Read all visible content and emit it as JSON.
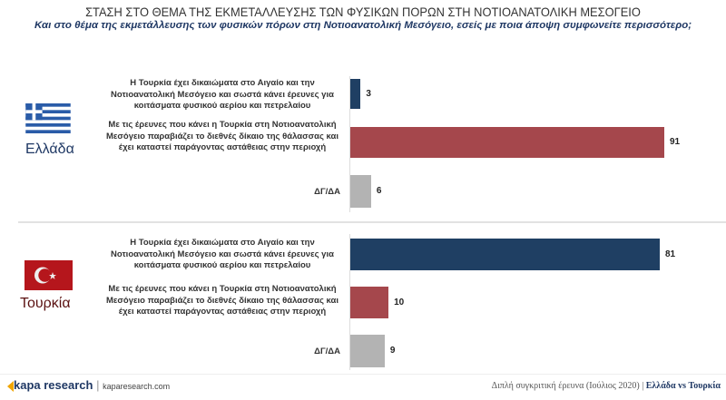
{
  "title": "ΣΤΑΣΗ ΣΤΟ ΘΕΜΑ ΤΗΣ ΕΚΜΕΤΑΛΛΕΥΣΗΣ ΤΩΝ ΦΥΣΙΚΩΝ ΠΟΡΩΝ ΣΤΗ ΝΟΤΙΟΑΝΑΤΟΛΙΚΗ ΜΕΣΟΓΕΙΟ",
  "subtitle": "Και στο θέμα της εκμετάλλευσης των φυσικών πόρων στη Νοτιοανατολική Μεσόγειο, εσείς με ποια άποψη συμφωνείτε περισσότερο;",
  "chart_data": [
    {
      "type": "bar",
      "orientation": "horizontal",
      "country": "Ελλάδα",
      "flag": "greece-flag",
      "categories": [
        "Η Τουρκία έχει δικαιώματα στο Αιγαίο και την Νοτιοανατολική Μεσόγειο και σωστά κάνει έρευνες για κοιτάσματα φυσικού αερίου και πετρελαίου",
        "Με τις έρευνες που κάνει η Τουρκία στη Νοτιοανατολική Μεσόγειο παραβιάζει το διεθνές δίκαιο της θάλασσας και έχει καταστεί παράγοντας αστάθειας στην περιοχή",
        "ΔΓ/ΔΑ"
      ],
      "values": [
        3,
        91,
        6
      ],
      "colors": [
        "#1f3f63",
        "#a5474c",
        "#b3b3b3"
      ]
    },
    {
      "type": "bar",
      "orientation": "horizontal",
      "country": "Τουρκία",
      "flag": "turkey-flag",
      "categories": [
        "Η Τουρκία έχει δικαιώματα στο Αιγαίο και την Νοτιοανατολική Μεσόγειο και σωστά κάνει έρευνες για κοιτάσματα φυσικού αερίου και πετρελαίου",
        "Με τις έρευνες που κάνει η Τουρκία στη Νοτιοανατολική Μεσόγειο παραβιάζει το διεθνές δίκαιο της θάλασσας και έχει καταστεί παράγοντας αστάθειας στην περιοχή",
        "ΔΓ/ΔΑ"
      ],
      "values": [
        81,
        10,
        9
      ],
      "colors": [
        "#1f3f63",
        "#a5474c",
        "#b3b3b3"
      ]
    }
  ],
  "footer": {
    "logo": "kapa research",
    "site": "kaparesearch.com",
    "note": "Διπλή συγκριτική έρευνα (Ιούλιος 2020) |",
    "note_bold": "Ελλάδα vs Τουρκία"
  }
}
